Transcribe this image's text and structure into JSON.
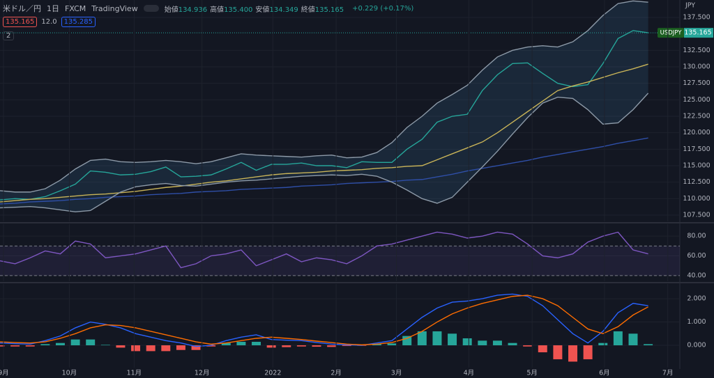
{
  "header": {
    "symbol": "米ドル／円",
    "interval": "1日",
    "source": "FXCM",
    "platform": "TradingView",
    "ohlc": [
      {
        "label": "始値",
        "value": "134.936"
      },
      {
        "label": "高値",
        "value": "135.400"
      },
      {
        "label": "安値",
        "value": "134.349"
      },
      {
        "label": "終値",
        "value": "135.165"
      }
    ],
    "change": "+0.229 (+0.17%)",
    "bid": "135.165",
    "spread": "12.0",
    "ask": "135.285",
    "indicators": "2"
  },
  "chart_data": [
    {
      "type": "line",
      "axis_unit": "JPY",
      "symbol": "USDJPY",
      "last_price": 135.165,
      "grid": true,
      "band_fill": "rgba(70,130,180,0.16)",
      "x": [
        0,
        1,
        2,
        3,
        4,
        5,
        6,
        7,
        8,
        9,
        10,
        11,
        12,
        13,
        14,
        15,
        16,
        17,
        18,
        19,
        20,
        21,
        22,
        23,
        24,
        25,
        26,
        27,
        28,
        29,
        30,
        31,
        32,
        33,
        34,
        35,
        36,
        37,
        38,
        39,
        40,
        41,
        42,
        43
      ],
      "xlim": [
        0,
        45.1
      ],
      "ylim": [
        106.55,
        140.14
      ],
      "yticks": [
        {
          "value": 107.5,
          "label": "107.500"
        },
        {
          "value": 110,
          "label": "110.000"
        },
        {
          "value": 112.5,
          "label": "112.500"
        },
        {
          "value": 115,
          "label": "115.000"
        },
        {
          "value": 117.5,
          "label": "117.500"
        },
        {
          "value": 120,
          "label": "120.000"
        },
        {
          "value": 122.5,
          "label": "122.500"
        },
        {
          "value": 125,
          "label": "125.000"
        },
        {
          "value": 127.5,
          "label": "127.500"
        },
        {
          "value": 130,
          "label": "130.000"
        },
        {
          "value": 132.5,
          "label": "132.500"
        },
        {
          "value": 137.5,
          "label": "137.500"
        }
      ],
      "series": [
        {
          "color": "#26a69a",
          "values": [
            109.8,
            110.0,
            109.9,
            110.3,
            111.2,
            112.2,
            114.2,
            114.0,
            113.6,
            113.7,
            114.1,
            114.8,
            113.3,
            113.4,
            113.6,
            114.5,
            115.5,
            114.3,
            115.2,
            115.2,
            115.4,
            115.0,
            115.0,
            114.7,
            115.6,
            115.5,
            115.5,
            117.5,
            119.0,
            121.6,
            122.5,
            122.8,
            126.4,
            128.8,
            130.5,
            130.6,
            129.0,
            127.5,
            127.0,
            127.3,
            130.5,
            134.3,
            135.5,
            135.165
          ]
        },
        {
          "color": "#c9b458",
          "values": [
            109.5,
            109.7,
            109.9,
            110.0,
            110.2,
            110.4,
            110.6,
            110.7,
            110.9,
            111.1,
            111.4,
            111.7,
            111.9,
            112.2,
            112.5,
            112.7,
            113.0,
            113.3,
            113.6,
            113.8,
            113.9,
            114.0,
            114.2,
            114.3,
            114.4,
            114.6,
            114.7,
            114.9,
            115.0,
            115.9,
            116.8,
            117.7,
            118.6,
            120.0,
            121.6,
            123.2,
            124.8,
            126.4,
            127.1,
            127.7,
            128.4,
            129.1,
            129.7,
            130.4
          ]
        },
        {
          "color": "#2f4fa8",
          "values": [
            109.2,
            109.3,
            109.5,
            109.6,
            109.7,
            109.9,
            110.0,
            110.2,
            110.3,
            110.4,
            110.6,
            110.7,
            110.8,
            111.0,
            111.1,
            111.2,
            111.4,
            111.5,
            111.6,
            111.7,
            111.9,
            112.0,
            112.1,
            112.3,
            112.4,
            112.5,
            112.6,
            112.8,
            112.9,
            113.3,
            113.7,
            114.2,
            114.6,
            115.0,
            115.4,
            115.8,
            116.3,
            116.7,
            117.1,
            117.5,
            117.9,
            118.4,
            118.8,
            119.2
          ]
        },
        {
          "color": "#8d9aa8",
          "band": "upper",
          "values": [
            111.2,
            111.0,
            111.0,
            111.5,
            112.8,
            114.5,
            115.8,
            116.0,
            115.6,
            115.5,
            115.6,
            115.8,
            115.6,
            115.3,
            115.6,
            116.2,
            116.8,
            116.6,
            116.5,
            116.4,
            116.3,
            116.5,
            116.6,
            116.2,
            116.3,
            117.0,
            118.5,
            120.8,
            122.5,
            124.5,
            125.8,
            127.2,
            129.5,
            131.5,
            132.5,
            133.0,
            133.2,
            133.0,
            133.8,
            135.5,
            137.8,
            139.6,
            140.0,
            139.8
          ]
        },
        {
          "color": "#8d9aa8",
          "band": "lower",
          "values": [
            108.6,
            108.7,
            108.8,
            108.6,
            108.3,
            108.0,
            108.2,
            109.6,
            111.0,
            111.8,
            112.1,
            112.3,
            112.0,
            111.9,
            112.2,
            112.5,
            112.7,
            112.8,
            113.0,
            113.2,
            113.4,
            113.5,
            113.6,
            113.5,
            113.7,
            113.4,
            112.5,
            111.3,
            110.0,
            109.3,
            110.2,
            112.5,
            114.8,
            117.2,
            119.8,
            122.3,
            124.5,
            125.4,
            125.2,
            123.5,
            121.3,
            121.5,
            123.5,
            126.0
          ]
        }
      ]
    },
    {
      "type": "line",
      "grid": true,
      "band": {
        "from": 40,
        "to": 70,
        "color": "rgba(126,87,194,0.12)"
      },
      "x": [
        0,
        1,
        2,
        3,
        4,
        5,
        6,
        7,
        8,
        9,
        10,
        11,
        12,
        13,
        14,
        15,
        16,
        17,
        18,
        19,
        20,
        21,
        22,
        23,
        24,
        25,
        26,
        27,
        28,
        29,
        30,
        31,
        32,
        33,
        34,
        35,
        36,
        37,
        38,
        39,
        40,
        41,
        42,
        43
      ],
      "xlim": [
        0,
        45.1
      ],
      "ylim": [
        34.3,
        92.1
      ],
      "yticks": [
        {
          "value": 40,
          "label": "40.00"
        },
        {
          "value": 60,
          "label": "60.00"
        },
        {
          "value": 80,
          "label": "80.00"
        }
      ],
      "series": [
        {
          "color": "#7e57c2",
          "values": [
            55,
            52,
            58,
            65,
            62,
            75,
            72,
            58,
            60,
            62,
            66,
            70,
            48,
            52,
            60,
            62,
            66,
            50,
            56,
            62,
            54,
            58,
            56,
            52,
            60,
            70,
            72,
            76,
            80,
            84,
            82,
            78,
            80,
            84,
            82,
            72,
            60,
            58,
            62,
            74,
            80,
            84,
            66,
            62
          ]
        }
      ]
    },
    {
      "type": "line",
      "grid": true,
      "bar_colors": {
        "positive": "#26a69a",
        "negative": "#ef5350"
      },
      "x": [
        0,
        1,
        2,
        3,
        4,
        5,
        6,
        7,
        8,
        9,
        10,
        11,
        12,
        13,
        14,
        15,
        16,
        17,
        18,
        19,
        20,
        21,
        22,
        23,
        24,
        25,
        26,
        27,
        28,
        29,
        30,
        31,
        32,
        33,
        34,
        35,
        36,
        37,
        38,
        39,
        40,
        41,
        42,
        43
      ],
      "xlim": [
        0,
        45.1
      ],
      "ylim": [
        -0.955,
        2.63
      ],
      "yticks": [
        {
          "value": 0,
          "label": "0.000"
        },
        {
          "value": 1,
          "label": "1.000"
        },
        {
          "value": 2,
          "label": "2.000"
        }
      ],
      "xticks": [
        {
          "value": 0.23,
          "label": "9月"
        },
        {
          "value": 4.6,
          "label": "10月"
        },
        {
          "value": 8.9,
          "label": "11月"
        },
        {
          "value": 13.4,
          "label": "12月"
        },
        {
          "value": 18.1,
          "label": "2022"
        },
        {
          "value": 22.3,
          "label": "2月"
        },
        {
          "value": 26.3,
          "label": "3月"
        },
        {
          "value": 31.1,
          "label": "4月"
        },
        {
          "value": 35.3,
          "label": "5月"
        },
        {
          "value": 40.1,
          "label": "6月"
        },
        {
          "value": 44.3,
          "label": "7月"
        }
      ],
      "series": [
        {
          "type": "bar",
          "values": [
            -0.05,
            -0.05,
            -0.05,
            0.05,
            0.1,
            0.25,
            0.25,
            0.02,
            -0.1,
            -0.25,
            -0.25,
            -0.25,
            -0.2,
            -0.2,
            -0.05,
            0.1,
            0.15,
            0.15,
            -0.1,
            -0.08,
            -0.05,
            -0.06,
            -0.07,
            -0.03,
            -0.02,
            0.05,
            0.08,
            0.4,
            0.6,
            0.6,
            0.5,
            0.3,
            0.2,
            0.2,
            0.1,
            -0.05,
            -0.3,
            -0.6,
            -0.7,
            -0.6,
            0.1,
            0.6,
            0.5,
            0.05
          ]
        },
        {
          "color": "#2962ff",
          "values": [
            0.1,
            0.07,
            0.05,
            0.2,
            0.4,
            0.75,
            1.0,
            0.9,
            0.75,
            0.5,
            0.35,
            0.2,
            0.1,
            -0.05,
            0.0,
            0.2,
            0.35,
            0.45,
            0.25,
            0.22,
            0.2,
            0.12,
            0.05,
            0.02,
            0.0,
            0.1,
            0.2,
            0.7,
            1.2,
            1.6,
            1.85,
            1.9,
            2.0,
            2.15,
            2.2,
            2.1,
            1.7,
            1.1,
            0.5,
            0.1,
            0.6,
            1.4,
            1.8,
            1.7
          ]
        },
        {
          "color": "#ff6d00",
          "values": [
            0.15,
            0.12,
            0.1,
            0.15,
            0.3,
            0.5,
            0.75,
            0.88,
            0.85,
            0.75,
            0.6,
            0.45,
            0.3,
            0.15,
            0.05,
            0.1,
            0.2,
            0.3,
            0.35,
            0.3,
            0.25,
            0.18,
            0.12,
            0.05,
            0.02,
            0.05,
            0.12,
            0.3,
            0.6,
            1.0,
            1.35,
            1.6,
            1.8,
            1.95,
            2.1,
            2.15,
            2.0,
            1.7,
            1.2,
            0.7,
            0.5,
            0.8,
            1.3,
            1.65
          ]
        }
      ]
    }
  ]
}
